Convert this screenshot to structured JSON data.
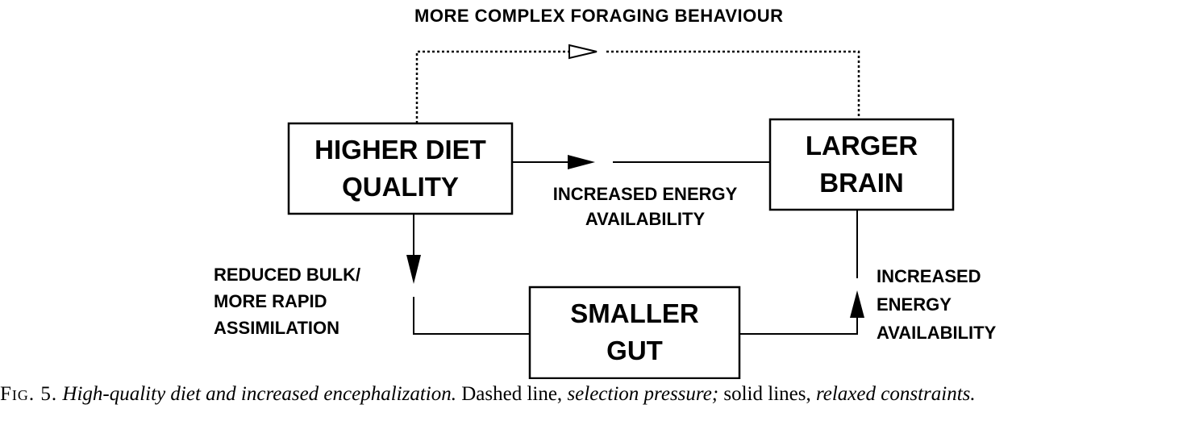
{
  "diagram": {
    "top_label": "MORE COMPLEX  FORAGING BEHAVIOUR",
    "boxes": {
      "diet": [
        "HIGHER DIET",
        "QUALITY"
      ],
      "brain": [
        "LARGER",
        "BRAIN"
      ],
      "gut": [
        "SMALLER",
        "GUT"
      ]
    },
    "labels": {
      "center_energy": [
        "INCREASED ENERGY",
        "AVAILABILITY"
      ],
      "left_bulk": [
        "REDUCED BULK/",
        "MORE RAPID",
        "ASSIMILATION"
      ],
      "right_energy": [
        "INCREASED",
        "ENERGY",
        "AVAILABILITY"
      ]
    },
    "line_color": "#000000",
    "background_color": "#ffffff"
  },
  "caption": {
    "fig_label": "Fig. 5.",
    "title": "High-quality diet and increased encephalization.",
    "text_1": "Dashed line,",
    "term_1": "selection pressure;",
    "text_2": "solid lines,",
    "term_2": "relaxed constraints."
  }
}
